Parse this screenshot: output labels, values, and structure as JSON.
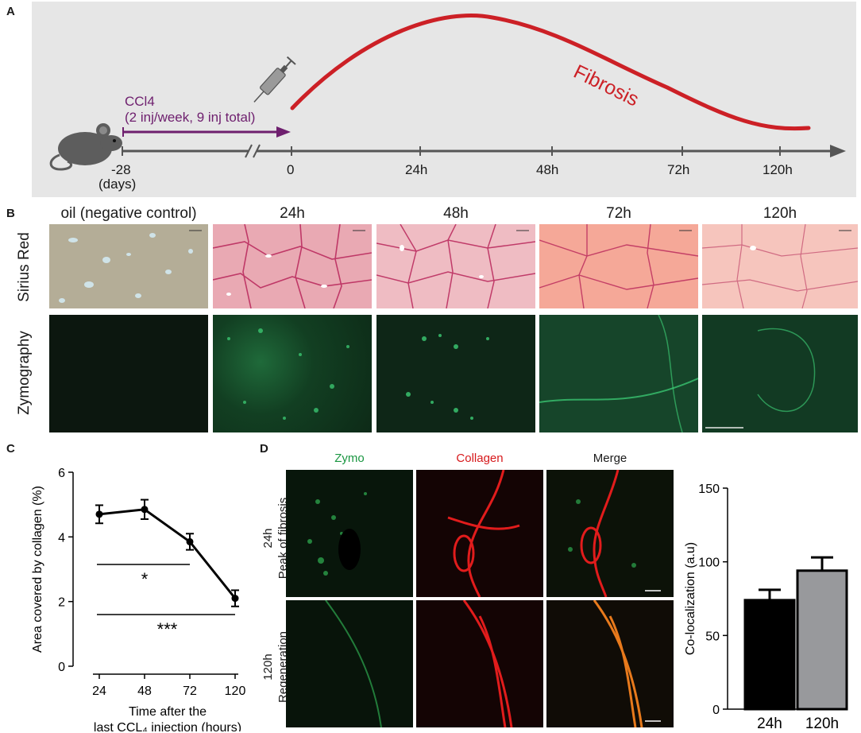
{
  "panels": {
    "a": "A",
    "b": "B",
    "c": "C",
    "d": "D"
  },
  "timeline": {
    "treatment_line1": "CCl4",
    "treatment_line2": "(2 inj/week, 9 inj total)",
    "curve_label": "Fibrosis",
    "start_tick": "-28",
    "start_unit": "(days)",
    "ticks": [
      "0",
      "24h",
      "48h",
      "72h",
      "120h"
    ],
    "colors": {
      "treatment": "#6e1f6e",
      "curve": "#cc2026",
      "axis": "#555555",
      "background": "#e6e6e6"
    }
  },
  "histology": {
    "columns": [
      "oil (negative control)",
      "24h",
      "48h",
      "72h",
      "120h"
    ],
    "rows": [
      "Sirius Red",
      "Zymography"
    ]
  },
  "chart_data": [
    {
      "type": "line",
      "x": [
        24,
        48,
        72,
        120
      ],
      "x_tick_labels": [
        "24",
        "48",
        "72",
        "120"
      ],
      "y": [
        4.7,
        4.85,
        3.85,
        2.1
      ],
      "y_error": [
        0.28,
        0.3,
        0.25,
        0.25
      ],
      "ylim": [
        0,
        6
      ],
      "y_ticks": [
        "0",
        "2",
        "4",
        "6"
      ],
      "ylabel": "Area covered by collagen (%)",
      "xlabel_line1": "Time after the",
      "xlabel_line2": "last CCL₄ injection (hours)",
      "annotations": [
        {
          "text": "*",
          "from": 24,
          "to": 72
        },
        {
          "text": "***",
          "from": 24,
          "to": 120
        }
      ]
    },
    {
      "type": "bar",
      "categories": [
        "24h",
        "120h"
      ],
      "values": [
        74,
        94
      ],
      "errors": [
        7,
        9
      ],
      "ylim": [
        0,
        150
      ],
      "y_ticks": [
        "0",
        "50",
        "100",
        "150"
      ],
      "ylabel": "Co-localization (a.u)",
      "colors": [
        "#000000",
        "#98999c"
      ]
    }
  ],
  "confocal": {
    "columns": [
      "Zymo",
      "Collagen",
      "Merge"
    ],
    "column_colors": [
      "#1a9641",
      "#d7191c",
      "#1a1a1a"
    ],
    "row1_line1": "24h",
    "row1_line2": "Peak of fibrosis",
    "row2_line1": "120h",
    "row2_line2": "Regeneration"
  }
}
